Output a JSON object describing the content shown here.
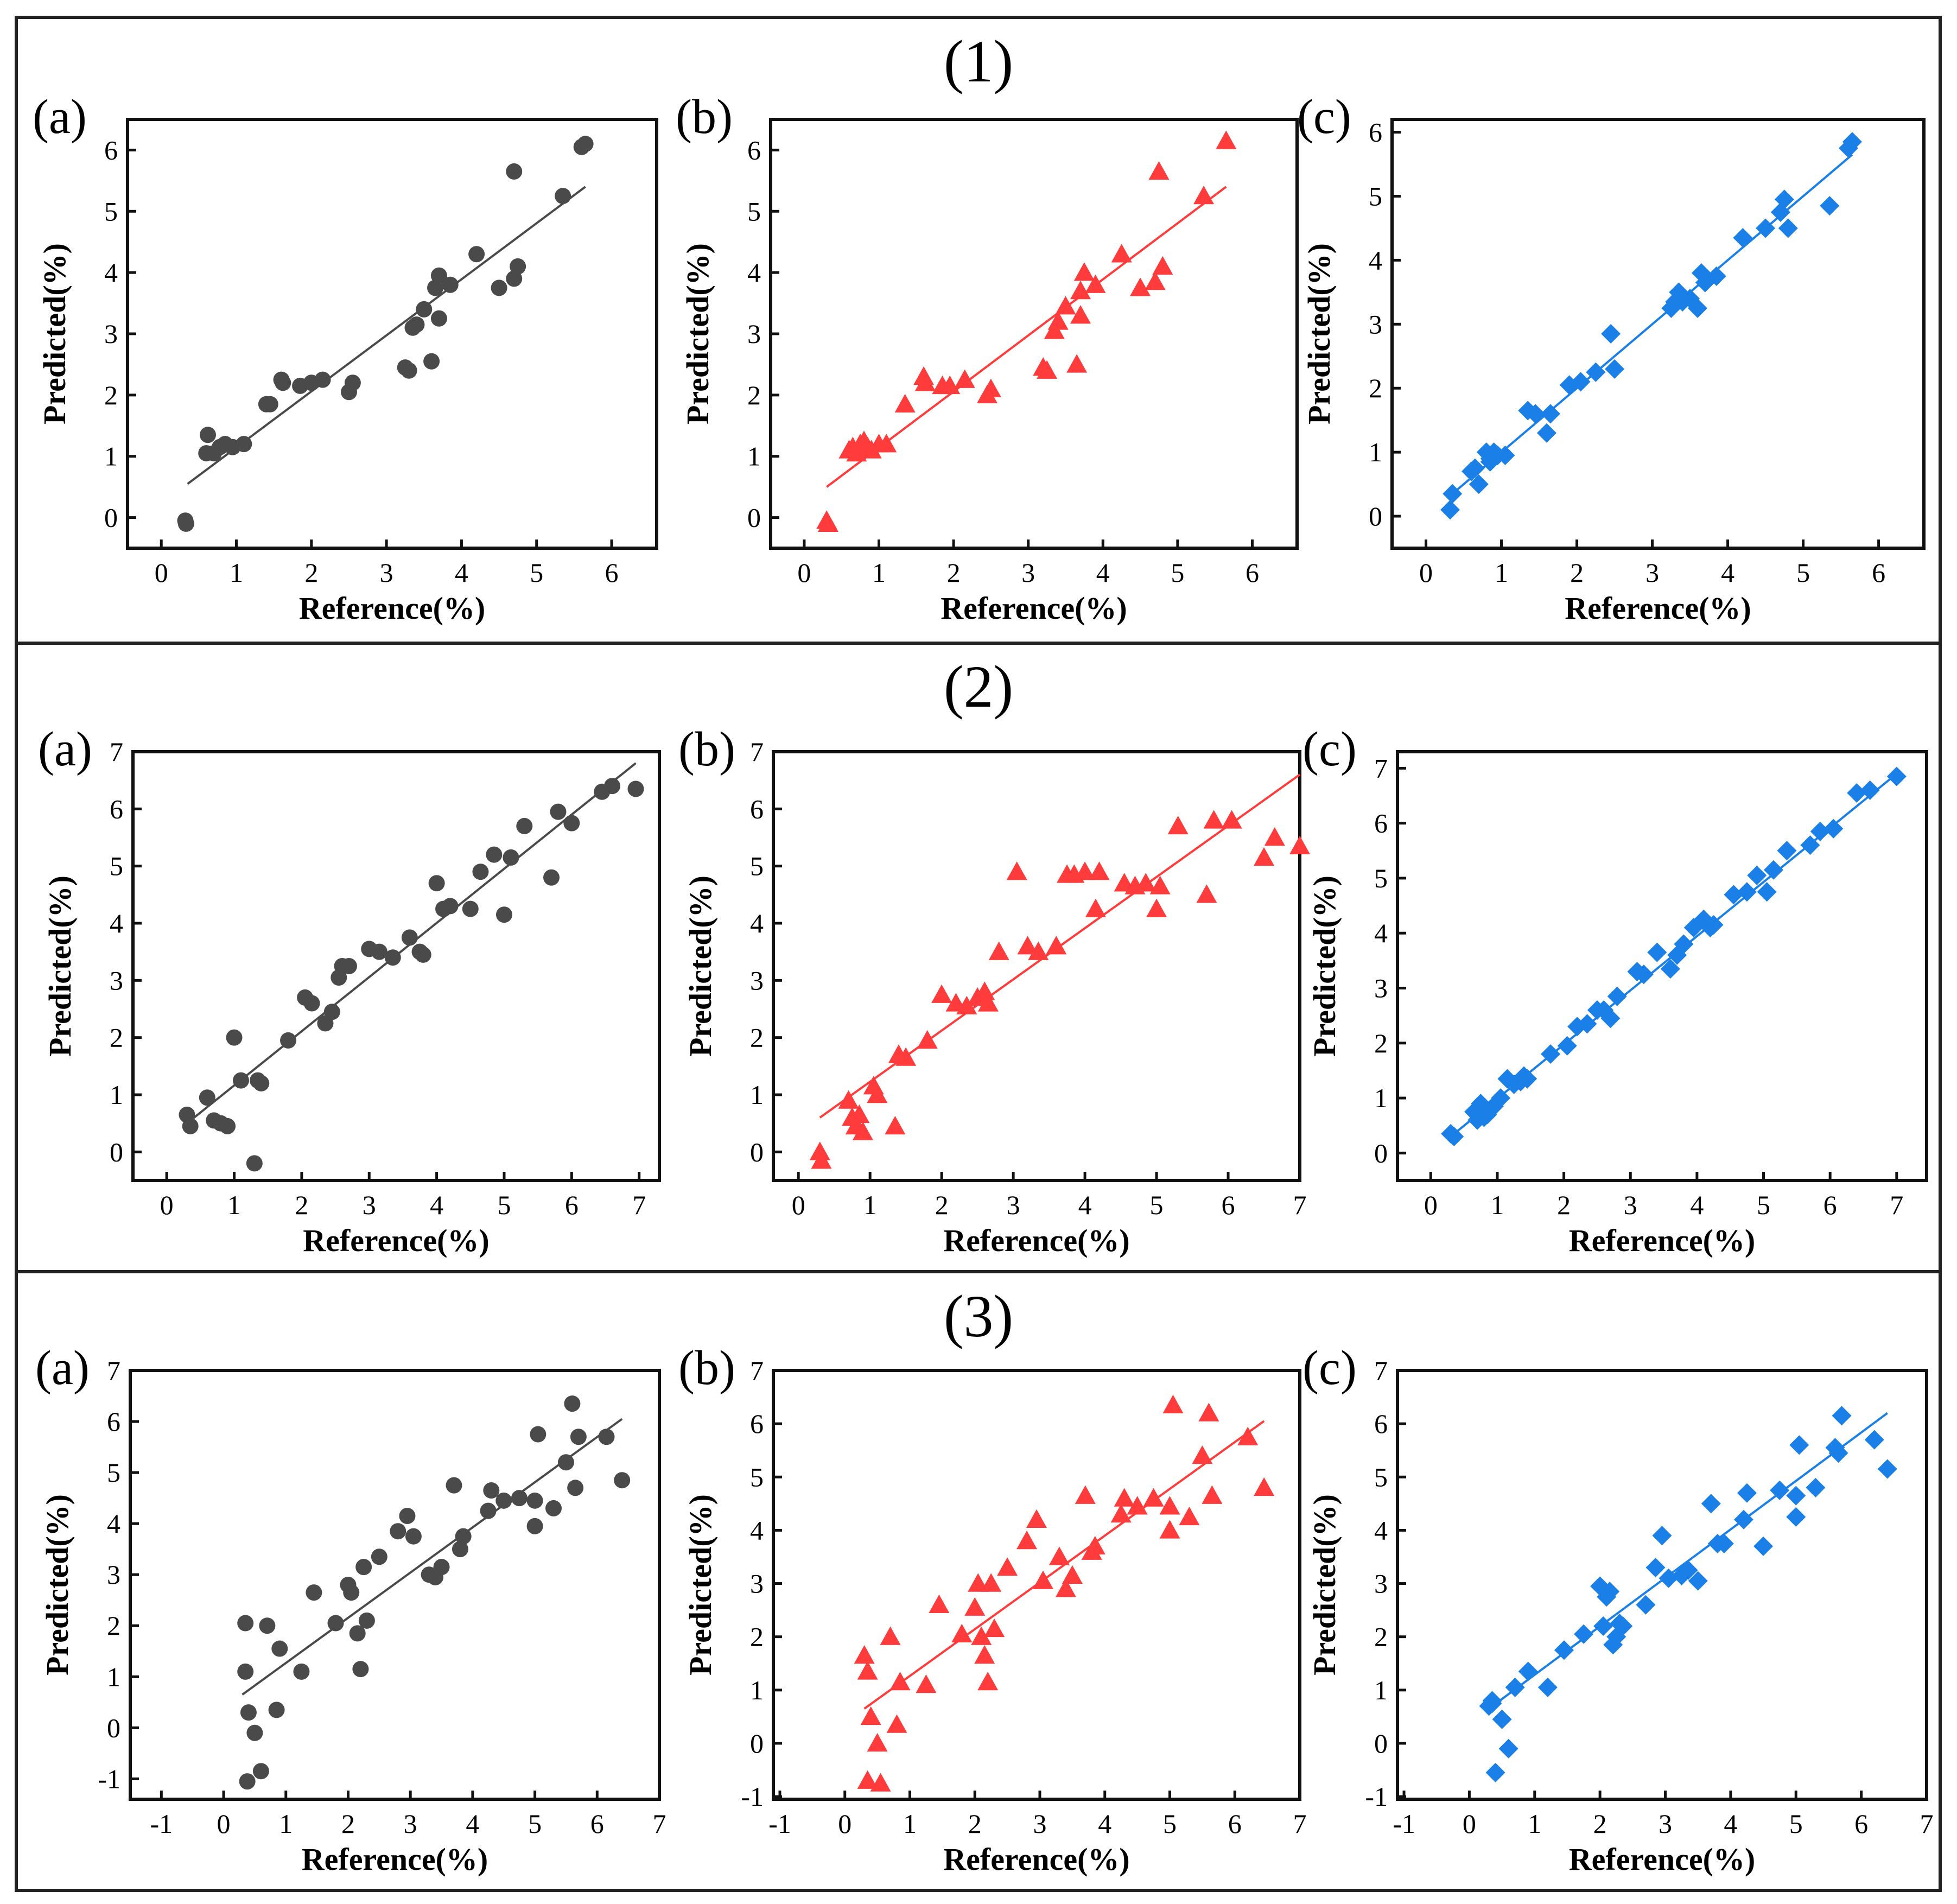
{
  "figure": {
    "colors": {
      "a": "#4a4a4a",
      "b": "#ff3b3b",
      "c": "#1a7fe6"
    },
    "rows": [
      {
        "title": "(1)"
      },
      {
        "title": "(2)"
      },
      {
        "title": "(3)"
      }
    ]
  },
  "chart_data": [
    {
      "row": 1,
      "panel": "(a)",
      "type": "scatter",
      "marker": "circle",
      "color": "#4a4a4a",
      "title": "",
      "xlabel": "Reference(%)",
      "ylabel": "Predicted(%)",
      "xlim": [
        -0.45,
        6.6
      ],
      "ylim": [
        -0.5,
        6.5
      ],
      "xticks": [
        0,
        1,
        2,
        3,
        4,
        5,
        6
      ],
      "yticks": [
        0,
        1,
        2,
        3,
        4,
        5,
        6
      ],
      "fit_line": {
        "x": [
          0.35,
          5.65
        ],
        "y": [
          0.55,
          5.4
        ]
      },
      "points": {
        "x": [
          0.32,
          0.33,
          0.6,
          0.62,
          0.7,
          0.78,
          0.85,
          0.95,
          1.1,
          1.4,
          1.45,
          1.6,
          1.62,
          1.85,
          2.0,
          2.15,
          2.5,
          2.55,
          3.25,
          3.3,
          3.35,
          3.4,
          3.5,
          3.6,
          3.65,
          3.7,
          3.7,
          3.85,
          4.2,
          4.5,
          4.7,
          4.75,
          4.7,
          5.35,
          5.6,
          5.65
        ],
        "y": [
          -0.05,
          -0.1,
          1.05,
          1.35,
          1.05,
          1.15,
          1.2,
          1.15,
          1.2,
          1.85,
          1.85,
          2.25,
          2.2,
          2.15,
          2.2,
          2.25,
          2.05,
          2.2,
          2.45,
          2.4,
          3.1,
          3.15,
          3.4,
          2.55,
          3.75,
          3.95,
          3.25,
          3.8,
          4.3,
          3.75,
          3.9,
          4.1,
          5.65,
          5.25,
          6.05,
          6.1
        ]
      }
    },
    {
      "row": 1,
      "panel": "(b)",
      "type": "scatter",
      "marker": "triangle",
      "color": "#ff3b3b",
      "title": "",
      "xlabel": "Reference(%)",
      "ylabel": "Predicted(%)",
      "xlim": [
        -0.45,
        6.6
      ],
      "ylim": [
        -0.5,
        6.5
      ],
      "xticks": [
        0,
        1,
        2,
        3,
        4,
        5,
        6
      ],
      "yticks": [
        0,
        1,
        2,
        3,
        4,
        5,
        6
      ],
      "fit_line": {
        "x": [
          0.3,
          5.65
        ],
        "y": [
          0.5,
          5.4
        ]
      },
      "points": {
        "x": [
          0.3,
          0.32,
          0.6,
          0.65,
          0.7,
          0.75,
          0.8,
          0.85,
          0.9,
          1.0,
          1.1,
          1.35,
          1.6,
          1.62,
          1.85,
          1.95,
          2.15,
          2.45,
          2.5,
          3.2,
          3.25,
          3.35,
          3.4,
          3.5,
          3.65,
          3.7,
          3.75,
          3.7,
          3.9,
          4.25,
          4.5,
          4.7,
          4.8,
          4.75,
          5.35,
          5.65
        ],
        "y": [
          -0.05,
          -0.1,
          1.1,
          1.15,
          1.05,
          1.2,
          1.25,
          1.15,
          1.1,
          1.2,
          1.2,
          1.85,
          2.3,
          2.2,
          2.15,
          2.15,
          2.25,
          2.0,
          2.1,
          2.45,
          2.4,
          3.05,
          3.2,
          3.45,
          2.5,
          3.7,
          4.0,
          3.3,
          3.8,
          4.3,
          3.75,
          3.85,
          4.1,
          5.65,
          5.25,
          6.15
        ]
      }
    },
    {
      "row": 1,
      "panel": "(c)",
      "type": "scatter",
      "marker": "diamond",
      "color": "#1a7fe6",
      "title": "",
      "xlabel": "Reference(%)",
      "ylabel": "Predicted(%)",
      "xlim": [
        -0.45,
        6.6
      ],
      "ylim": [
        -0.5,
        6.2
      ],
      "xticks": [
        0,
        1,
        2,
        3,
        4,
        5,
        6
      ],
      "yticks": [
        0,
        1,
        2,
        3,
        4,
        5,
        6
      ],
      "fit_line": {
        "x": [
          0.3,
          5.65
        ],
        "y": [
          0.3,
          5.65
        ]
      },
      "points": {
        "x": [
          0.32,
          0.35,
          0.6,
          0.65,
          0.7,
          0.8,
          0.85,
          0.85,
          0.9,
          0.95,
          1.05,
          1.35,
          1.45,
          1.6,
          1.65,
          1.9,
          2.05,
          2.25,
          2.45,
          2.5,
          3.25,
          3.3,
          3.35,
          3.4,
          3.5,
          3.6,
          3.65,
          3.7,
          3.85,
          4.2,
          4.5,
          4.7,
          4.75,
          4.8,
          5.35,
          5.6,
          5.65
        ],
        "y": [
          0.1,
          0.35,
          0.7,
          0.75,
          0.5,
          1.0,
          0.9,
          0.85,
          1.0,
          0.95,
          0.95,
          1.65,
          1.6,
          1.3,
          1.6,
          2.05,
          2.1,
          2.25,
          2.85,
          2.3,
          3.25,
          3.35,
          3.5,
          3.35,
          3.4,
          3.25,
          3.8,
          3.65,
          3.75,
          4.35,
          4.5,
          4.75,
          4.95,
          4.5,
          4.85,
          5.75,
          5.85
        ]
      }
    },
    {
      "row": 2,
      "panel": "(a)",
      "type": "scatter",
      "marker": "circle",
      "color": "#4a4a4a",
      "title": "",
      "xlabel": "Reference(%)",
      "ylabel": "Predicted(%)",
      "xlim": [
        -0.5,
        7.3
      ],
      "ylim": [
        -0.5,
        7.0
      ],
      "xticks": [
        0,
        1,
        2,
        3,
        4,
        5,
        6,
        7
      ],
      "yticks": [
        0,
        1,
        2,
        3,
        4,
        5,
        6,
        7
      ],
      "fit_line": {
        "x": [
          0.3,
          6.95
        ],
        "y": [
          0.5,
          6.8
        ]
      },
      "points": {
        "x": [
          0.3,
          0.35,
          0.6,
          0.7,
          0.8,
          0.9,
          1.0,
          1.1,
          1.3,
          1.35,
          1.4,
          1.8,
          2.05,
          2.15,
          2.35,
          2.45,
          2.55,
          2.6,
          2.7,
          3.0,
          3.15,
          3.35,
          3.6,
          3.75,
          3.8,
          4.0,
          4.1,
          4.2,
          4.5,
          4.65,
          4.85,
          5.0,
          5.1,
          5.3,
          5.7,
          5.8,
          6.0,
          6.45,
          6.6,
          6.95
        ],
        "y": [
          0.65,
          0.45,
          0.95,
          0.55,
          0.5,
          0.45,
          2.0,
          1.25,
          -0.2,
          1.25,
          1.2,
          1.95,
          2.7,
          2.6,
          2.25,
          2.45,
          3.05,
          3.25,
          3.25,
          3.55,
          3.5,
          3.4,
          3.75,
          3.5,
          3.45,
          4.7,
          4.25,
          4.3,
          4.25,
          4.9,
          5.2,
          4.15,
          5.15,
          5.7,
          4.8,
          5.95,
          5.75,
          6.3,
          6.4,
          6.35
        ]
      }
    },
    {
      "row": 2,
      "panel": "(b)",
      "type": "scatter",
      "marker": "triangle",
      "color": "#ff3b3b",
      "title": "",
      "xlabel": "Reference(%)",
      "ylabel": "Predicted(%)",
      "xlim": [
        -0.35,
        7.0
      ],
      "ylim": [
        -0.5,
        7.0
      ],
      "xticks": [
        0,
        1,
        2,
        3,
        4,
        5,
        6,
        7
      ],
      "yticks": [
        0,
        1,
        2,
        3,
        4,
        5,
        6,
        7
      ],
      "fit_line": {
        "x": [
          0.3,
          7.0
        ],
        "y": [
          0.6,
          6.6
        ]
      },
      "points": {
        "x": [
          0.3,
          0.32,
          0.7,
          0.75,
          0.8,
          0.85,
          0.9,
          1.05,
          1.1,
          1.35,
          1.4,
          1.5,
          1.8,
          2.0,
          2.2,
          2.35,
          2.5,
          2.6,
          2.65,
          2.8,
          3.05,
          3.2,
          3.35,
          3.6,
          3.75,
          3.85,
          4.0,
          4.15,
          4.2,
          4.55,
          4.7,
          4.85,
          5.0,
          5.05,
          5.3,
          5.7,
          5.8,
          6.05,
          6.5,
          6.65,
          7.0
        ],
        "y": [
          0.0,
          -0.15,
          0.9,
          0.6,
          0.45,
          0.65,
          0.35,
          1.15,
          1.0,
          0.45,
          1.7,
          1.65,
          1.95,
          2.75,
          2.6,
          2.55,
          2.7,
          2.8,
          2.6,
          3.5,
          4.9,
          3.6,
          3.5,
          3.6,
          4.85,
          4.85,
          4.9,
          4.25,
          4.9,
          4.7,
          4.65,
          4.7,
          4.25,
          4.65,
          5.7,
          4.5,
          5.8,
          5.8,
          5.15,
          5.5,
          5.35
        ]
      }
    },
    {
      "row": 2,
      "panel": "(c)",
      "type": "scatter",
      "marker": "diamond",
      "color": "#1a7fe6",
      "title": "",
      "xlabel": "Reference(%)",
      "ylabel": "Predicted(%)",
      "xlim": [
        -0.5,
        7.45
      ],
      "ylim": [
        -0.5,
        7.3
      ],
      "xticks": [
        0,
        1,
        2,
        3,
        4,
        5,
        6,
        7
      ],
      "yticks": [
        0,
        1,
        2,
        3,
        4,
        5,
        6,
        7
      ],
      "fit_line": {
        "x": [
          0.3,
          7.0
        ],
        "y": [
          0.3,
          6.9
        ]
      },
      "points": {
        "x": [
          0.3,
          0.35,
          0.65,
          0.7,
          0.75,
          0.8,
          0.85,
          0.9,
          0.95,
          1.05,
          1.15,
          1.25,
          1.35,
          1.4,
          1.45,
          1.8,
          2.05,
          2.2,
          2.35,
          2.5,
          2.6,
          2.7,
          2.8,
          3.1,
          3.2,
          3.4,
          3.6,
          3.7,
          3.8,
          3.95,
          4.1,
          4.2,
          4.25,
          4.55,
          4.75,
          4.9,
          5.05,
          5.15,
          5.35,
          5.7,
          5.85,
          6.05,
          6.4,
          6.6,
          7.0
        ],
        "y": [
          0.35,
          0.3,
          0.75,
          0.6,
          0.9,
          0.65,
          0.7,
          0.8,
          0.85,
          1.0,
          1.35,
          1.25,
          1.3,
          1.4,
          1.35,
          1.8,
          1.95,
          2.3,
          2.35,
          2.6,
          2.6,
          2.45,
          2.85,
          3.3,
          3.25,
          3.65,
          3.35,
          3.6,
          3.8,
          4.1,
          4.25,
          4.1,
          4.15,
          4.7,
          4.75,
          5.05,
          4.75,
          5.15,
          5.5,
          5.6,
          5.85,
          5.9,
          6.55,
          6.6,
          6.85
        ]
      }
    },
    {
      "row": 3,
      "panel": "(a)",
      "type": "scatter",
      "marker": "circle",
      "color": "#4a4a4a",
      "title": "",
      "xlabel": "Reference(%)",
      "ylabel": "Predicted(%)",
      "xlim": [
        -1.5,
        7.0
      ],
      "ylim": [
        -1.4,
        7.0
      ],
      "xticks": [
        -1,
        0,
        1,
        2,
        3,
        4,
        5,
        6,
        7
      ],
      "yticks": [
        -1,
        0,
        1,
        2,
        3,
        4,
        5,
        6,
        7
      ],
      "fit_line": {
        "x": [
          0.3,
          6.4
        ],
        "y": [
          0.65,
          6.05
        ]
      },
      "points": {
        "x": [
          0.35,
          0.35,
          0.38,
          0.4,
          0.5,
          0.6,
          0.7,
          0.85,
          0.9,
          1.25,
          1.45,
          1.8,
          2.0,
          2.05,
          2.15,
          2.2,
          2.25,
          2.3,
          2.5,
          2.8,
          2.95,
          3.05,
          3.3,
          3.4,
          3.5,
          3.7,
          3.8,
          3.85,
          4.25,
          4.3,
          4.5,
          4.75,
          5.0,
          5.0,
          5.05,
          5.3,
          5.5,
          5.6,
          5.65,
          5.7,
          6.15,
          6.4
        ],
        "y": [
          2.05,
          1.1,
          -1.05,
          0.3,
          -0.1,
          -0.85,
          2.0,
          0.35,
          1.55,
          1.1,
          2.65,
          2.05,
          2.8,
          2.65,
          1.85,
          1.15,
          3.15,
          2.1,
          3.35,
          3.85,
          4.15,
          3.75,
          3.0,
          2.95,
          3.15,
          4.75,
          3.5,
          3.75,
          4.25,
          4.65,
          4.45,
          4.5,
          3.95,
          4.45,
          5.75,
          4.3,
          5.2,
          6.35,
          4.7,
          5.7,
          5.7,
          4.85
        ]
      }
    },
    {
      "row": 3,
      "panel": "(b)",
      "type": "scatter",
      "marker": "triangle",
      "color": "#ff3b3b",
      "title": "",
      "xlabel": "Reference(%)",
      "ylabel": "Predicted(%)",
      "xlim": [
        -1.1,
        7.0
      ],
      "ylim": [
        -1.05,
        7.0
      ],
      "xticks": [
        -1,
        0,
        1,
        2,
        3,
        4,
        5,
        6,
        7
      ],
      "yticks": [
        -1,
        0,
        1,
        2,
        3,
        4,
        5,
        6,
        7
      ],
      "fit_line": {
        "x": [
          0.3,
          6.45
        ],
        "y": [
          0.65,
          6.05
        ]
      },
      "points": {
        "x": [
          0.3,
          0.35,
          0.35,
          0.4,
          0.5,
          0.55,
          0.7,
          0.8,
          0.85,
          1.25,
          1.45,
          1.8,
          2.0,
          2.05,
          2.1,
          2.15,
          2.2,
          2.25,
          2.3,
          2.5,
          2.8,
          2.95,
          3.05,
          3.3,
          3.4,
          3.5,
          3.7,
          3.8,
          3.85,
          4.25,
          4.3,
          4.5,
          4.75,
          5.0,
          5.0,
          5.05,
          5.3,
          5.5,
          5.6,
          5.65,
          6.2,
          6.45
        ],
        "y": [
          1.65,
          1.35,
          -0.7,
          0.5,
          0.0,
          -0.75,
          2.0,
          0.35,
          1.15,
          1.1,
          2.6,
          2.05,
          2.55,
          3.0,
          2.0,
          1.65,
          1.15,
          3.0,
          2.15,
          3.3,
          3.8,
          4.2,
          3.05,
          3.5,
          2.9,
          3.15,
          4.65,
          3.6,
          3.7,
          4.3,
          4.6,
          4.45,
          4.6,
          4.0,
          4.45,
          6.35,
          4.25,
          5.4,
          6.2,
          4.65,
          5.75,
          4.8
        ]
      }
    },
    {
      "row": 3,
      "panel": "(c)",
      "type": "scatter",
      "marker": "diamond",
      "color": "#1a7fe6",
      "title": "",
      "xlabel": "Reference(%)",
      "ylabel": "Predicted(%)",
      "xlim": [
        -1.1,
        7.0
      ],
      "ylim": [
        -1.05,
        7.0
      ],
      "xticks": [
        -1,
        0,
        1,
        2,
        3,
        4,
        5,
        6,
        7
      ],
      "yticks": [
        -1,
        0,
        1,
        2,
        3,
        4,
        5,
        6,
        7
      ],
      "fit_line": {
        "x": [
          0.3,
          6.4
        ],
        "y": [
          0.65,
          6.2
        ]
      },
      "points": {
        "x": [
          0.3,
          0.35,
          0.4,
          0.35,
          0.5,
          0.6,
          0.7,
          0.9,
          1.2,
          1.45,
          1.75,
          2.0,
          2.05,
          2.1,
          2.15,
          2.2,
          2.25,
          2.3,
          2.35,
          2.7,
          2.85,
          2.95,
          3.05,
          3.25,
          3.35,
          3.5,
          3.7,
          3.8,
          3.9,
          4.2,
          4.25,
          4.5,
          4.75,
          5.0,
          5.0,
          5.05,
          5.3,
          5.6,
          5.65,
          5.7,
          6.2,
          6.4
        ],
        "y": [
          0.7,
          0.8,
          -0.55,
          0.75,
          0.45,
          -0.1,
          1.05,
          1.35,
          1.05,
          1.75,
          2.05,
          2.95,
          2.2,
          2.75,
          2.85,
          1.85,
          2.0,
          2.25,
          2.2,
          2.6,
          3.3,
          3.9,
          3.1,
          3.15,
          3.25,
          3.05,
          4.5,
          3.75,
          3.75,
          4.2,
          4.7,
          3.7,
          4.75,
          4.25,
          4.65,
          5.6,
          4.8,
          5.55,
          5.45,
          6.15,
          5.7,
          5.15
        ]
      }
    }
  ]
}
